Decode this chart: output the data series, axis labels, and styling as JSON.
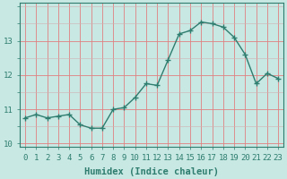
{
  "x": [
    0,
    1,
    2,
    3,
    4,
    5,
    6,
    7,
    8,
    9,
    10,
    11,
    12,
    13,
    14,
    15,
    16,
    17,
    18,
    19,
    20,
    21,
    22,
    23
  ],
  "y": [
    10.75,
    10.85,
    10.75,
    10.8,
    10.85,
    10.55,
    10.45,
    10.45,
    11.0,
    11.05,
    11.35,
    11.75,
    11.7,
    12.45,
    13.2,
    13.3,
    13.55,
    13.5,
    13.4,
    13.1,
    12.6,
    11.75,
    12.05,
    11.9
  ],
  "line_color": "#2e7d6e",
  "marker_color": "#2e7d6e",
  "bg_color": "#c8e8e4",
  "grid_major_color": "#e08080",
  "grid_minor_color": "#d0b0b0",
  "xlabel": "Humidex (Indice chaleur)",
  "ylim": [
    9.9,
    14.1
  ],
  "xlim": [
    -0.5,
    23.5
  ],
  "yticks": [
    10,
    11,
    12,
    13
  ],
  "xticks": [
    0,
    1,
    2,
    3,
    4,
    5,
    6,
    7,
    8,
    9,
    10,
    11,
    12,
    13,
    14,
    15,
    16,
    17,
    18,
    19,
    20,
    21,
    22,
    23
  ],
  "xlabel_fontsize": 7.5,
  "tick_fontsize": 6.5,
  "line_width": 1.0,
  "marker_size": 2.5
}
